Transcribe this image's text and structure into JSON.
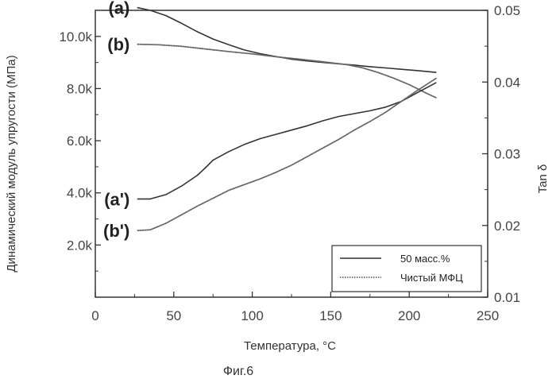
{
  "chart_data": {
    "type": "line",
    "xlabel": "Температура, °C",
    "ylabel_left": "Динамический модуль упругости (МПа)",
    "ylabel_right": "Tan δ",
    "caption": "Фиг.6",
    "xlim": [
      0,
      250
    ],
    "x_ticks": [
      0,
      50,
      100,
      150,
      200,
      250
    ],
    "x_tick_labels": [
      "0",
      "50",
      "100",
      "150",
      "200",
      "250"
    ],
    "ylim_left": [
      0,
      11000
    ],
    "y_ticks_left": [
      2000,
      4000,
      6000,
      8000,
      10000
    ],
    "y_tick_labels_left": [
      "2.0k",
      "4.0k",
      "6.0k",
      "8.0k",
      "10.0k"
    ],
    "ylim_right": [
      0.01,
      0.05
    ],
    "y_ticks_right": [
      0.01,
      0.02,
      0.03,
      0.04,
      0.05
    ],
    "y_tick_labels_right": [
      "0.01",
      "0.02",
      "0.03",
      "0.04",
      "0.05"
    ],
    "grid": false,
    "legend_position": "bottom-right",
    "legend": [
      {
        "label": "50 масс.%",
        "style": "solid",
        "color": "#333333"
      },
      {
        "label": "Чистый МФЦ",
        "style": "dotted",
        "color": "#666666"
      }
    ],
    "curve_labels": [
      {
        "text": "(a)",
        "for": "a"
      },
      {
        "text": "(b)",
        "for": "b"
      },
      {
        "text": "(a')",
        "for": "a_prime"
      },
      {
        "text": "(b')",
        "for": "b_prime"
      }
    ],
    "series": [
      {
        "id": "a",
        "axis": "left",
        "style": "solid",
        "x": [
          27,
          35,
          45,
          55,
          65,
          75,
          85,
          95,
          105,
          115,
          125,
          135,
          145,
          155,
          165,
          175,
          185,
          195,
          205,
          217
        ],
        "y": [
          11100,
          11000,
          10800,
          10500,
          10180,
          9900,
          9680,
          9480,
          9340,
          9230,
          9130,
          9060,
          9000,
          8950,
          8900,
          8840,
          8790,
          8740,
          8690,
          8620
        ]
      },
      {
        "id": "b",
        "axis": "left",
        "style": "dotted",
        "x": [
          27,
          40,
          55,
          70,
          85,
          100,
          115,
          130,
          145,
          160,
          170,
          180,
          190,
          200,
          210,
          217
        ],
        "y": [
          9700,
          9680,
          9620,
          9520,
          9420,
          9330,
          9220,
          9130,
          9030,
          8920,
          8800,
          8620,
          8400,
          8150,
          7850,
          7650
        ]
      },
      {
        "id": "a_prime",
        "axis": "right",
        "style": "solid",
        "x": [
          27,
          35,
          45,
          55,
          65,
          70,
          75,
          85,
          95,
          105,
          115,
          125,
          135,
          145,
          155,
          165,
          175,
          185,
          195,
          205,
          217
        ],
        "y": [
          0.0237,
          0.0237,
          0.0243,
          0.0255,
          0.027,
          0.028,
          0.0291,
          0.0303,
          0.0313,
          0.0321,
          0.0327,
          0.0333,
          0.0339,
          0.0346,
          0.0352,
          0.0356,
          0.036,
          0.0365,
          0.0373,
          0.0385,
          0.0399
        ]
      },
      {
        "id": "b_prime",
        "axis": "right",
        "style": "dotted",
        "x": [
          27,
          35,
          45,
          55,
          65,
          75,
          85,
          95,
          105,
          115,
          125,
          135,
          145,
          155,
          165,
          175,
          185,
          195,
          205,
          217
        ],
        "y": [
          0.0193,
          0.0194,
          0.0203,
          0.0215,
          0.0227,
          0.0238,
          0.0249,
          0.0257,
          0.0265,
          0.0274,
          0.0284,
          0.0296,
          0.0308,
          0.032,
          0.0333,
          0.0345,
          0.0358,
          0.0373,
          0.0388,
          0.0405
        ]
      }
    ]
  }
}
